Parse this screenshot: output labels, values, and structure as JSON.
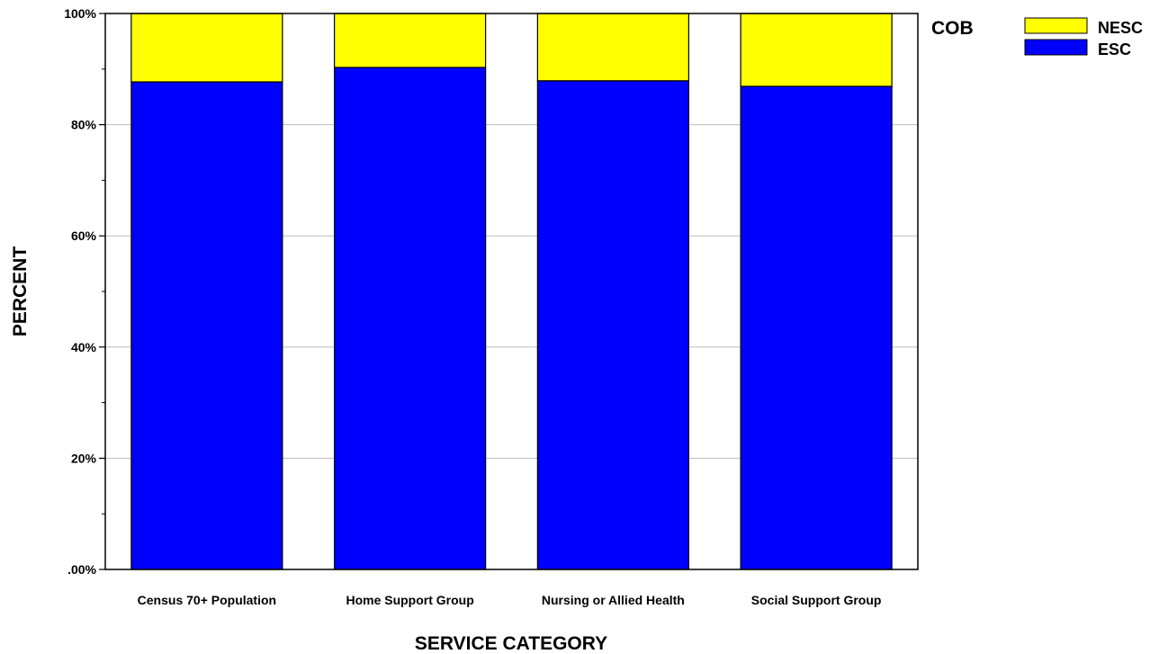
{
  "chart_data": {
    "type": "bar",
    "stacked": true,
    "categories": [
      "Census 70+ Population",
      "Home Support Group",
      "Nursing or Allied Health",
      "Social Support Group"
    ],
    "series": [
      {
        "name": "ESC",
        "values": [
          87.7,
          90.3,
          87.9,
          86.9
        ],
        "color": "#0000ff"
      },
      {
        "name": "NESC",
        "values": [
          12.3,
          9.7,
          12.1,
          13.1
        ],
        "color": "#ffff00"
      }
    ],
    "xlabel": "SERVICE CATEGORY",
    "ylabel": "PERCENT",
    "ylim": [
      0,
      100
    ],
    "yticks": [
      0,
      20,
      40,
      60,
      80,
      100
    ],
    "ytick_labels": [
      ".00%",
      "20%",
      "40%",
      "60%",
      "80%",
      "100%"
    ],
    "grid": true,
    "legend": {
      "title": "COB",
      "placement": "top-right",
      "entries": [
        {
          "label": "NESC",
          "color": "#ffff00"
        },
        {
          "label": "ESC",
          "color": "#0000ff"
        }
      ]
    }
  }
}
